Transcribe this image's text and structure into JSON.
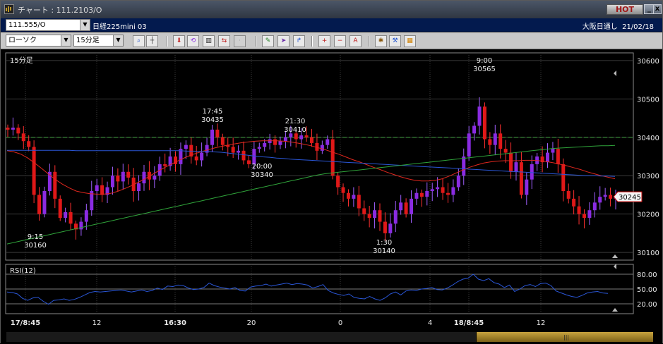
{
  "window": {
    "title": "チャート : 111.2103/O",
    "hot_label": "HOT",
    "minimize": "_",
    "close": "x"
  },
  "toolbar1": {
    "symbol_value": "111.555/O",
    "name": "日経225mini 03",
    "exchange": "大阪日通し",
    "date": "21/02/18"
  },
  "toolbar2": {
    "chart_type": "ローソク",
    "interval": "15分足",
    "icons": [
      "magnify-icon",
      "crosshair-icon",
      "download-icon",
      "replay-icon",
      "bar-settings-icon",
      "compare-icon",
      "disabled-icon",
      "pencil-icon",
      "cursor-icon",
      "arrow-icon",
      "zoom-in-icon",
      "zoom-out-icon",
      "all-icon",
      "gear-icon",
      "wrench-icon",
      "palette-icon"
    ]
  },
  "chart_data": [
    {
      "type": "candlestick",
      "panel_label": "15分足",
      "ylim": [
        30080,
        30620
      ],
      "y_ticks": [
        "30600",
        "30500",
        "30400",
        "30300",
        "30200",
        "30100"
      ],
      "current_price": "30245",
      "annotations": [
        {
          "time": "9:15",
          "value": "30160"
        },
        {
          "time": "17:45",
          "value": "30435"
        },
        {
          "time": "20:00",
          "value": "30340"
        },
        {
          "time": "21:30",
          "value": "30410"
        },
        {
          "time": "1:30",
          "value": "30140"
        },
        {
          "time": "9:00",
          "value": "30565"
        }
      ],
      "x_ticks": [
        "17/8:45",
        "12",
        "16:30",
        "20",
        "0",
        "4",
        "18/8:45",
        "12"
      ],
      "reference_line": 30400,
      "series": [
        {
          "color": "#e0271e",
          "values": [
            30365,
            30362,
            30356,
            30346,
            30333,
            30319,
            30304,
            30290,
            30278,
            30268,
            30260,
            30256,
            30253,
            30252,
            30252,
            30254,
            30259,
            30266,
            30274,
            30283,
            30292,
            30303,
            30313,
            30323,
            30332,
            30341,
            30349,
            30356,
            30362,
            30367,
            30372,
            30376,
            30380,
            30383,
            30386,
            30388,
            30390,
            30391,
            30391,
            30391,
            30390,
            30388,
            30385,
            30382,
            30378,
            30373,
            30368,
            30362,
            30356,
            30349,
            30342,
            30336,
            30329,
            30322,
            30316,
            30309,
            30303,
            30297,
            30292,
            30288,
            30286,
            30286,
            30288,
            30292,
            30299,
            30307,
            30315,
            30322,
            30328,
            30333,
            30336,
            30338,
            30339,
            30339,
            30339,
            30340,
            30340,
            30339,
            30337,
            30334,
            30330,
            30326,
            30321,
            30316,
            30310,
            30305,
            30300,
            30296,
            30292
          ]
        },
        {
          "color": "#2a56d6",
          "values": [
            30366,
            30366,
            30366,
            30366,
            30366,
            30366,
            30366,
            30366,
            30366,
            30366,
            30365,
            30365,
            30365,
            30365,
            30365,
            30365,
            30365,
            30365,
            30365,
            30365,
            30365,
            30365,
            30365,
            30365,
            30365,
            30365,
            30364,
            30364,
            30363,
            30363,
            30362,
            30361,
            30359,
            30357,
            30355,
            30353,
            30351,
            30349,
            30348,
            30346,
            30345,
            30343,
            30342,
            30341,
            30340,
            30339,
            30338,
            30337,
            30336,
            30335,
            30334,
            30333,
            30332,
            30331,
            30330,
            30329,
            30328,
            30327,
            30326,
            30325,
            30324,
            30323,
            30322,
            30321,
            30320,
            30319,
            30318,
            30317,
            30316,
            30315,
            30314,
            30313,
            30312,
            30311,
            30310,
            30309,
            30308,
            30307,
            30306,
            30305,
            30304,
            30303,
            30302,
            30301,
            30300,
            30300,
            30299,
            30299,
            30298
          ]
        },
        {
          "color": "#2fa33a",
          "values": [
            30122,
            30126,
            30130,
            30134,
            30138,
            30142,
            30146,
            30150,
            30154,
            30158,
            30162,
            30166,
            30170,
            30174,
            30178,
            30182,
            30186,
            30190,
            30194,
            30198,
            30202,
            30206,
            30210,
            30214,
            30218,
            30222,
            30226,
            30230,
            30234,
            30238,
            30242,
            30246,
            30250,
            30254,
            30258,
            30262,
            30266,
            30270,
            30274,
            30278,
            30282,
            30286,
            30290,
            30294,
            30298,
            30302,
            30305,
            30307,
            30309,
            30311,
            30313,
            30315,
            30317,
            30319,
            30321,
            30323,
            30325,
            30327,
            30329,
            30331,
            30333,
            30335,
            30337,
            30339,
            30341,
            30343,
            30345,
            30347,
            30349,
            30351,
            30353,
            30355,
            30357,
            30359,
            30361,
            30363,
            30365,
            30367,
            30369,
            30371,
            30372,
            30373,
            30374,
            30375,
            30376,
            30377,
            30378,
            30378,
            30379
          ]
        }
      ],
      "candles": [
        30420,
        30425,
        30410,
        30390,
        30375,
        30250,
        30200,
        30260,
        30310,
        30240,
        30190,
        30205,
        30175,
        30160,
        30180,
        30210,
        30260,
        30275,
        30250,
        30270,
        30300,
        30285,
        30310,
        30295,
        30260,
        30280,
        30310,
        30290,
        30300,
        30330,
        30325,
        30350,
        30330,
        30370,
        30380,
        30350,
        30340,
        30360,
        30380,
        30420,
        30400,
        30380,
        30375,
        30360,
        30365,
        30340,
        30330,
        30370,
        30375,
        30385,
        30395,
        30380,
        30390,
        30400,
        30410,
        30395,
        30405,
        30400,
        30385,
        30365,
        30380,
        30395,
        30300,
        30270,
        30255,
        30240,
        30250,
        30215,
        30200,
        30190,
        30210,
        30180,
        30150,
        30175,
        30210,
        30230,
        30200,
        30240,
        30255,
        30245,
        30260,
        30265,
        30270,
        30255,
        30250,
        30270,
        30300,
        30350,
        30410,
        30430,
        30480,
        30395,
        30380,
        30410,
        30370,
        30360,
        30310,
        30335,
        30250,
        30290,
        30330,
        30350,
        30335,
        30360,
        30370,
        30330,
        30260,
        30240,
        30220,
        30200,
        30190,
        30210,
        30230,
        30245,
        30250,
        30240,
        30245
      ],
      "rsi_panel": {
        "label": "RSI(12)",
        "ylim": [
          0,
          100
        ],
        "y_ticks": [
          "80.00",
          "50.00",
          "20.00"
        ],
        "values": [
          44,
          43,
          40,
          31,
          27,
          32,
          33,
          25,
          19,
          27,
          28,
          30,
          27,
          29,
          33,
          38,
          43,
          45,
          44,
          45,
          46,
          47,
          48,
          46,
          44,
          46,
          48,
          45,
          47,
          52,
          49,
          56,
          55,
          58,
          57,
          52,
          49,
          50,
          53,
          62,
          57,
          54,
          52,
          50,
          53,
          47,
          46,
          54,
          56,
          57,
          60,
          56,
          58,
          60,
          62,
          59,
          61,
          60,
          58,
          52,
          55,
          59,
          47,
          42,
          39,
          37,
          40,
          33,
          31,
          30,
          35,
          30,
          27,
          32,
          40,
          44,
          38,
          46,
          48,
          47,
          50,
          51,
          53,
          49,
          48,
          52,
          58,
          65,
          70,
          72,
          80,
          70,
          67,
          71,
          63,
          60,
          53,
          58,
          45,
          50,
          57,
          59,
          55,
          61,
          62,
          57,
          46,
          42,
          38,
          35,
          33,
          37,
          42,
          44,
          45,
          42,
          41
        ]
      }
    }
  ]
}
